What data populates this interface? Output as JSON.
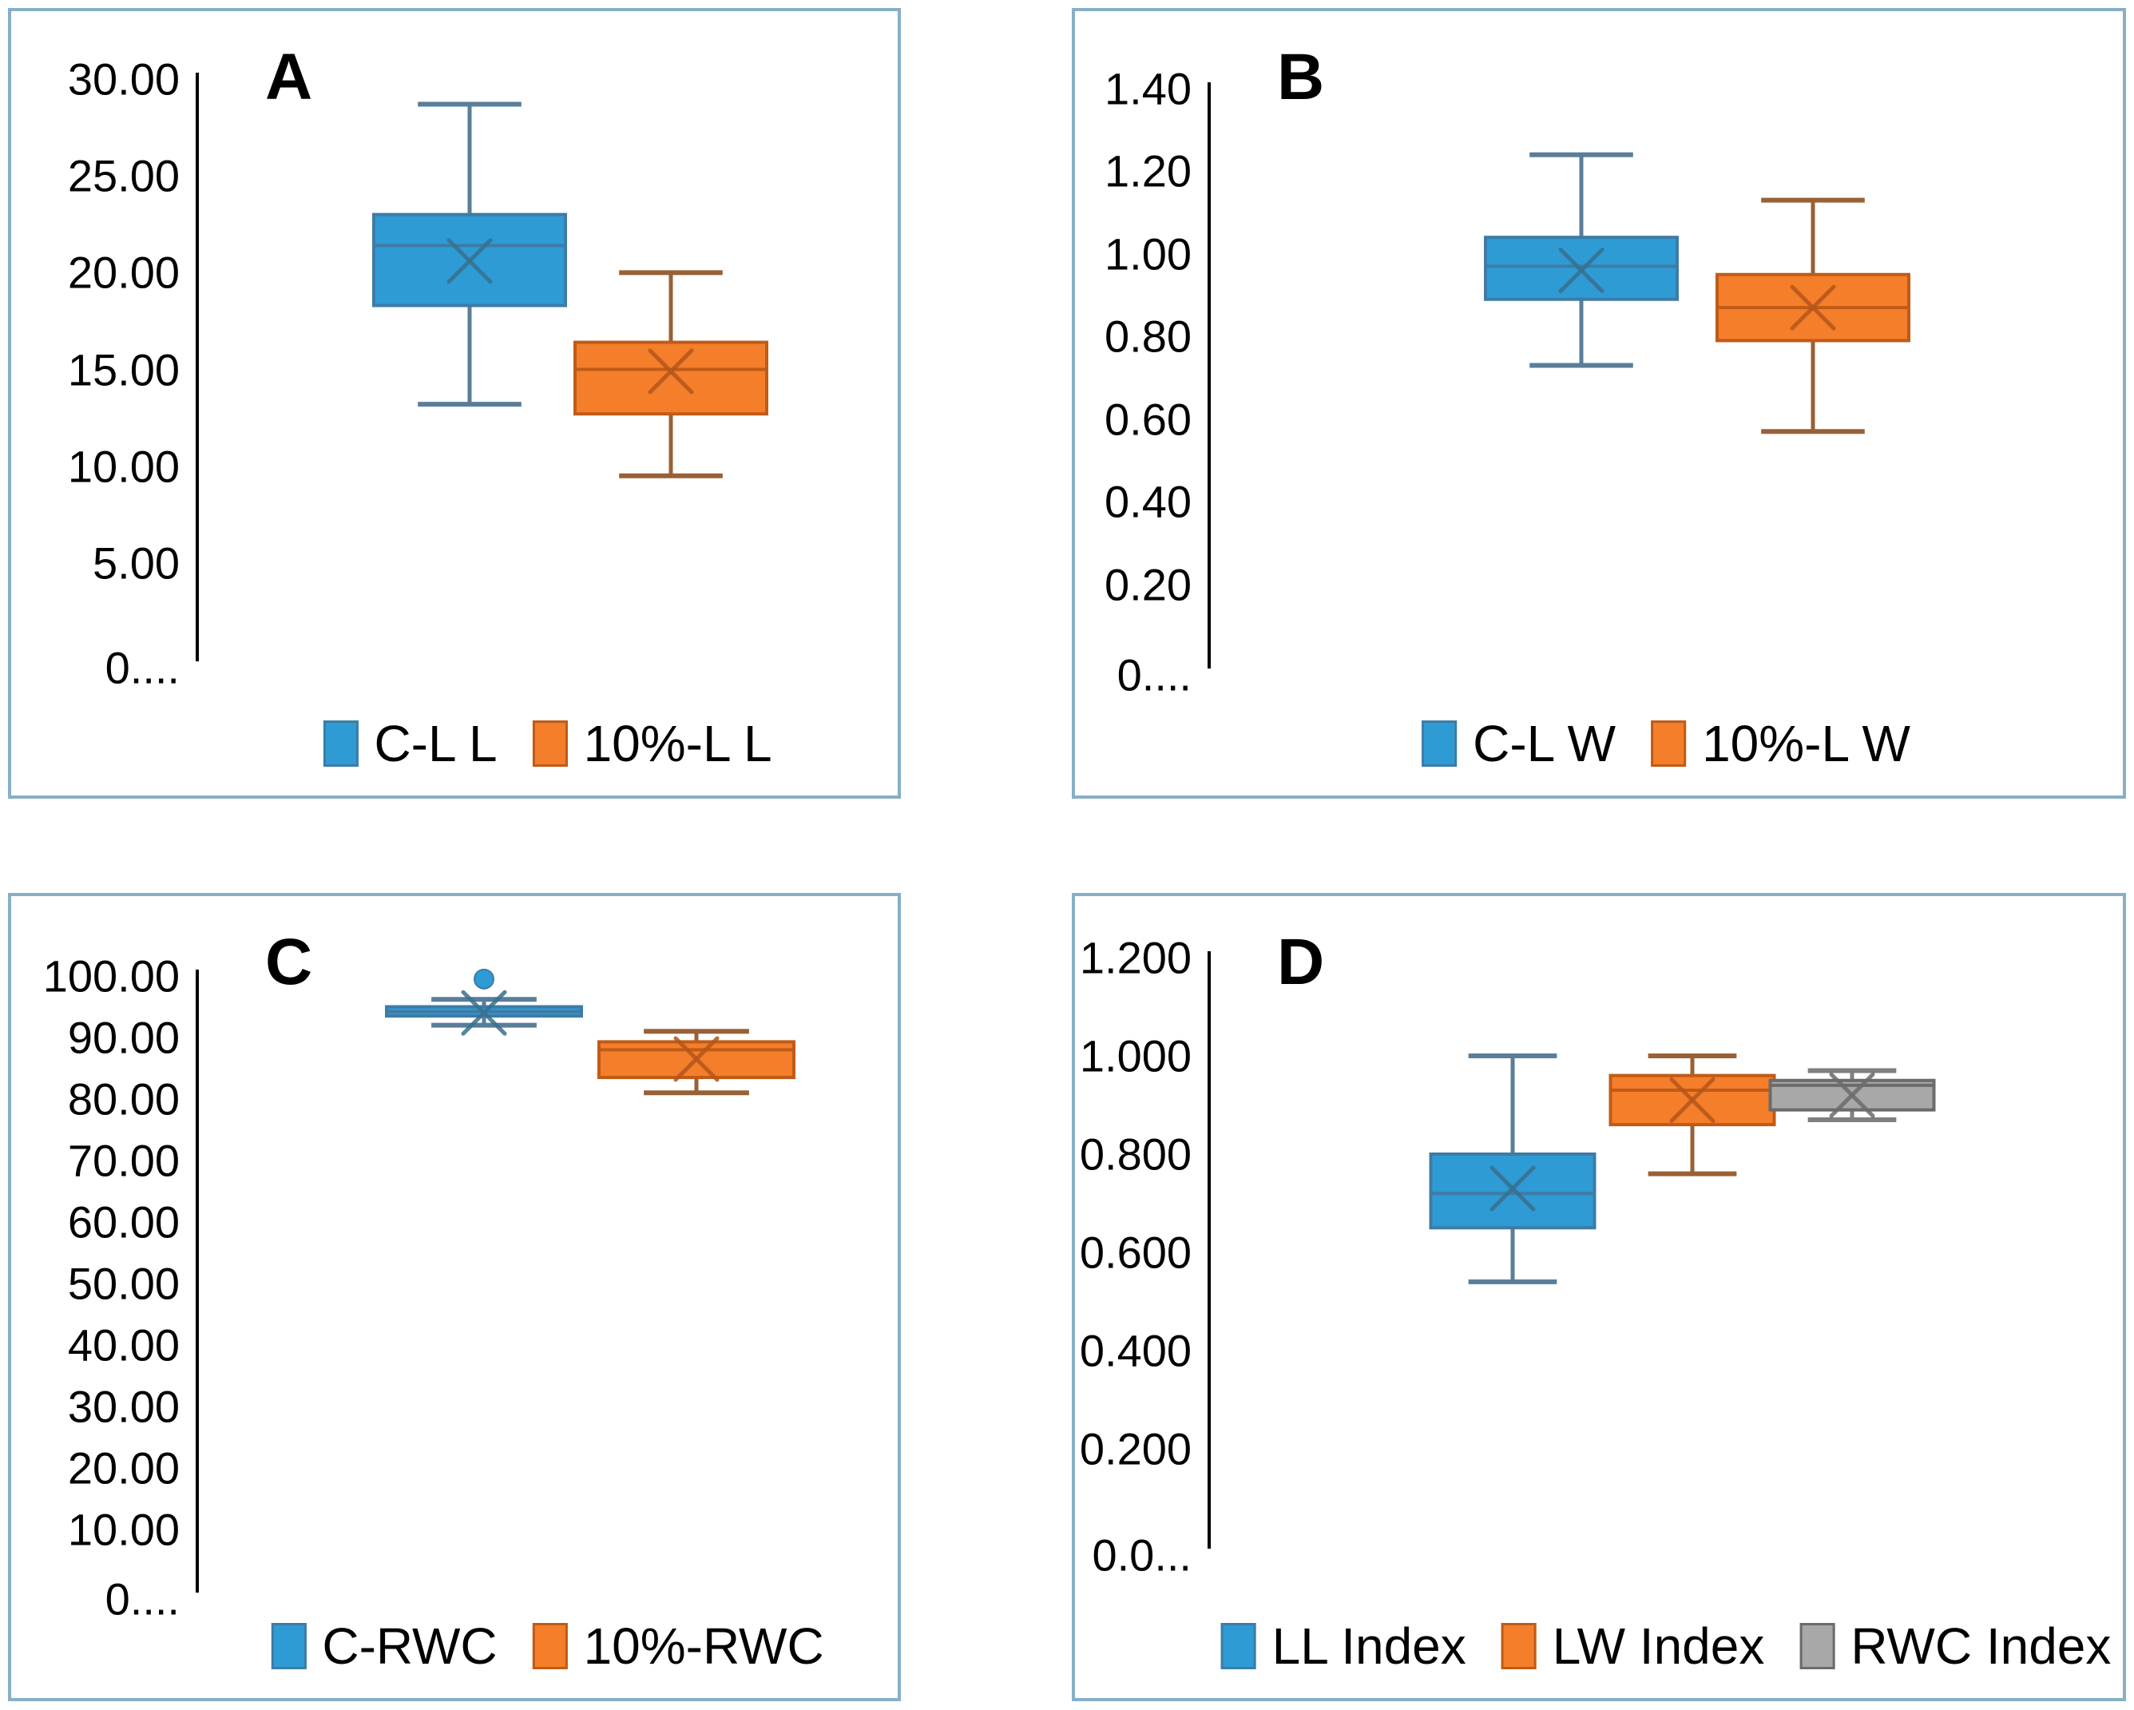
{
  "figure": {
    "background": "#ffffff",
    "panel_border_color": "#87AFC7"
  },
  "colors": {
    "blue": {
      "fill": "#2E9BD5",
      "stroke": "#3D7CA6",
      "whisker": "#5A7E99",
      "mean": "#38708F"
    },
    "orange": {
      "fill": "#F57E2A",
      "stroke": "#BF5B17",
      "whisker": "#996036",
      "mean": "#B5561B"
    },
    "gray": {
      "fill": "#A8A8A8",
      "stroke": "#6B6B6B",
      "whisker": "#7F7F7F",
      "mean": "#6B6B6B"
    }
  },
  "chart_data": [
    {
      "type": "box",
      "panel_label": "A",
      "legend_position": "bottom",
      "grid": false,
      "axis": {
        "min": 0,
        "max": 30,
        "tick_step": 5,
        "tick_labels": [
          "30.00",
          "25.00",
          "20.00",
          "15.00",
          "10.00",
          "5.00",
          "0...."
        ]
      },
      "series": [
        {
          "name": "C-L L",
          "color_key": "blue",
          "min": 13.2,
          "q1": 18.3,
          "median": 21.4,
          "q3": 23.0,
          "max": 28.7,
          "mean": 20.6,
          "outliers": []
        },
        {
          "name": "10%-L L",
          "color_key": "orange",
          "min": 9.5,
          "q1": 12.7,
          "median": 15.0,
          "q3": 16.4,
          "max": 20.0,
          "mean": 14.9,
          "outliers": []
        }
      ]
    },
    {
      "type": "box",
      "panel_label": "B",
      "legend_position": "bottom",
      "grid": false,
      "axis": {
        "min": 0,
        "max": 1.4,
        "tick_step": 0.2,
        "tick_labels": [
          "1.40",
          "1.20",
          "1.00",
          "0.80",
          "0.60",
          "0.40",
          "0.20",
          "0...."
        ]
      },
      "series": [
        {
          "name": "C-L W",
          "color_key": "blue",
          "min": 0.73,
          "q1": 0.89,
          "median": 0.97,
          "q3": 1.04,
          "max": 1.24,
          "mean": 0.96,
          "outliers": []
        },
        {
          "name": "10%-L W",
          "color_key": "orange",
          "min": 0.57,
          "q1": 0.79,
          "median": 0.87,
          "q3": 0.95,
          "max": 1.13,
          "mean": 0.87,
          "outliers": []
        }
      ]
    },
    {
      "type": "box",
      "panel_label": "C",
      "legend_position": "bottom",
      "grid": false,
      "axis": {
        "min": 0,
        "max": 100,
        "tick_step": 10,
        "tick_labels": [
          "100.00",
          "90.00",
          "80.00",
          "70.00",
          "60.00",
          "50.00",
          "40.00",
          "30.00",
          "20.00",
          "10.00",
          "0...."
        ]
      },
      "series": [
        {
          "name": "C-RWC",
          "color_key": "blue",
          "min": 92.0,
          "q1": 93.5,
          "median": 94.2,
          "q3": 95.0,
          "max": 96.2,
          "mean": 94.0,
          "outliers": [
            99.5
          ]
        },
        {
          "name": "10%-RWC",
          "color_key": "orange",
          "min": 81.0,
          "q1": 83.5,
          "median": 88.0,
          "q3": 89.3,
          "max": 91.0,
          "mean": 86.5,
          "outliers": []
        }
      ]
    },
    {
      "type": "box",
      "panel_label": "D",
      "legend_position": "bottom",
      "grid": false,
      "axis": {
        "min": 0,
        "max": 1.2,
        "tick_step": 0.2,
        "tick_labels": [
          "1.200",
          "1.000",
          "0.800",
          "0.600",
          "0.400",
          "0.200",
          "0.0..."
        ]
      },
      "series": [
        {
          "name": "LL Index",
          "color_key": "blue",
          "min": 0.54,
          "q1": 0.65,
          "median": 0.72,
          "q3": 0.8,
          "max": 1.0,
          "mean": 0.73,
          "outliers": []
        },
        {
          "name": "LW Index",
          "color_key": "orange",
          "min": 0.76,
          "q1": 0.86,
          "median": 0.93,
          "q3": 0.96,
          "max": 1.0,
          "mean": 0.91,
          "outliers": []
        },
        {
          "name": "RWC Index",
          "color_key": "gray",
          "min": 0.87,
          "q1": 0.89,
          "median": 0.94,
          "q3": 0.95,
          "max": 0.97,
          "mean": 0.92,
          "outliers": []
        }
      ]
    }
  ]
}
